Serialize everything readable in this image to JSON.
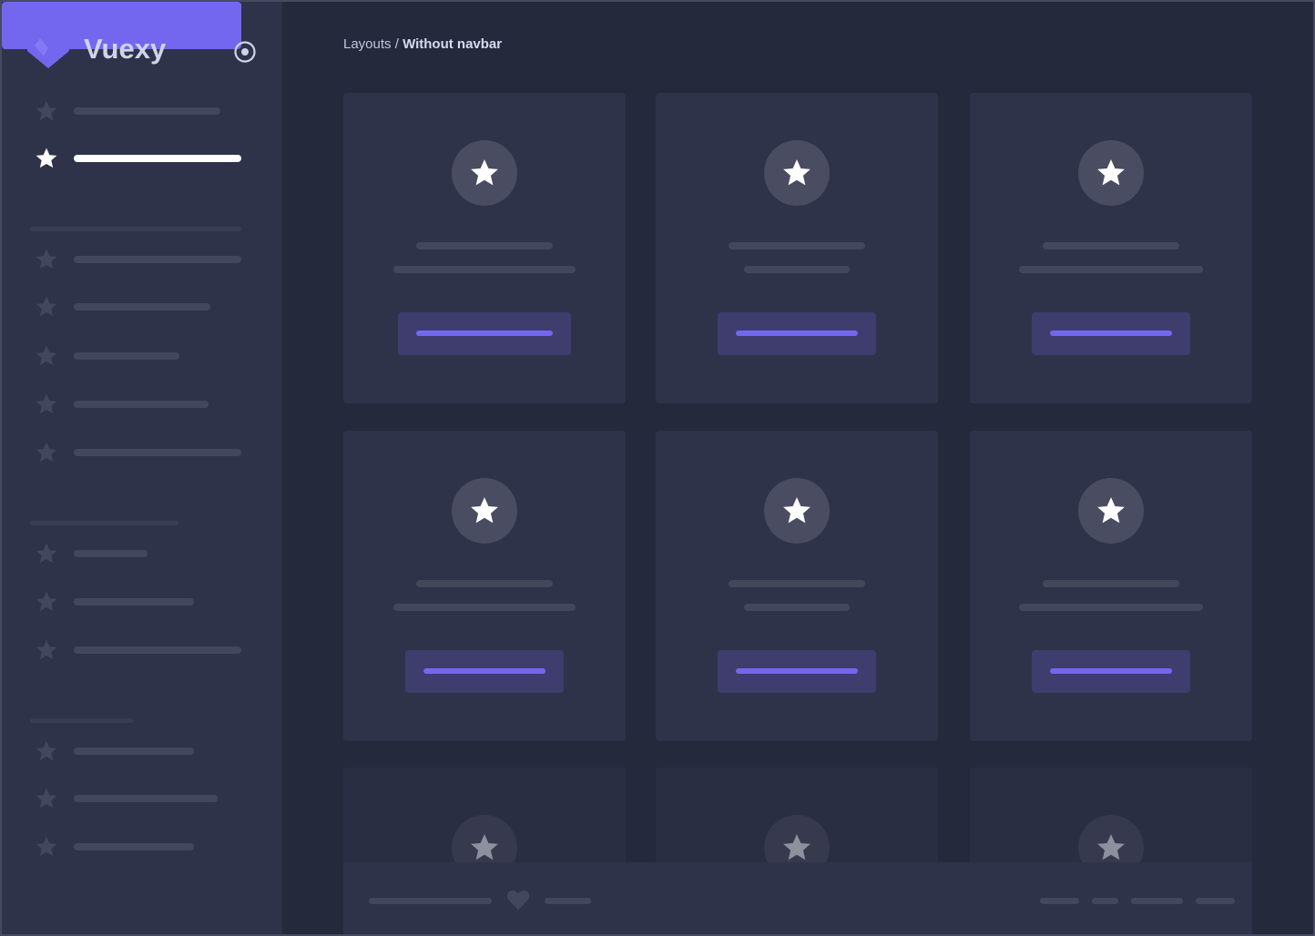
{
  "app": {
    "brand": "Vuexy",
    "logo_color": "#7367f0",
    "pin_icon": "radio-circle-icon"
  },
  "breadcrumb": {
    "parent": "Layouts",
    "separator": "/",
    "current": "Without navbar"
  },
  "colors": {
    "accent": "#7367f0",
    "sidebar": "#2f3349",
    "background": "#25293c",
    "card": "#2f3349",
    "skeleton": "#44475b"
  },
  "sidebar": {
    "active_index": 1,
    "item_count": 12,
    "section_dividers": 3
  },
  "cards": {
    "rows": 3,
    "columns": 3,
    "icon": "star-icon"
  },
  "footer": {
    "icon": "heart-icon",
    "links": 4
  }
}
